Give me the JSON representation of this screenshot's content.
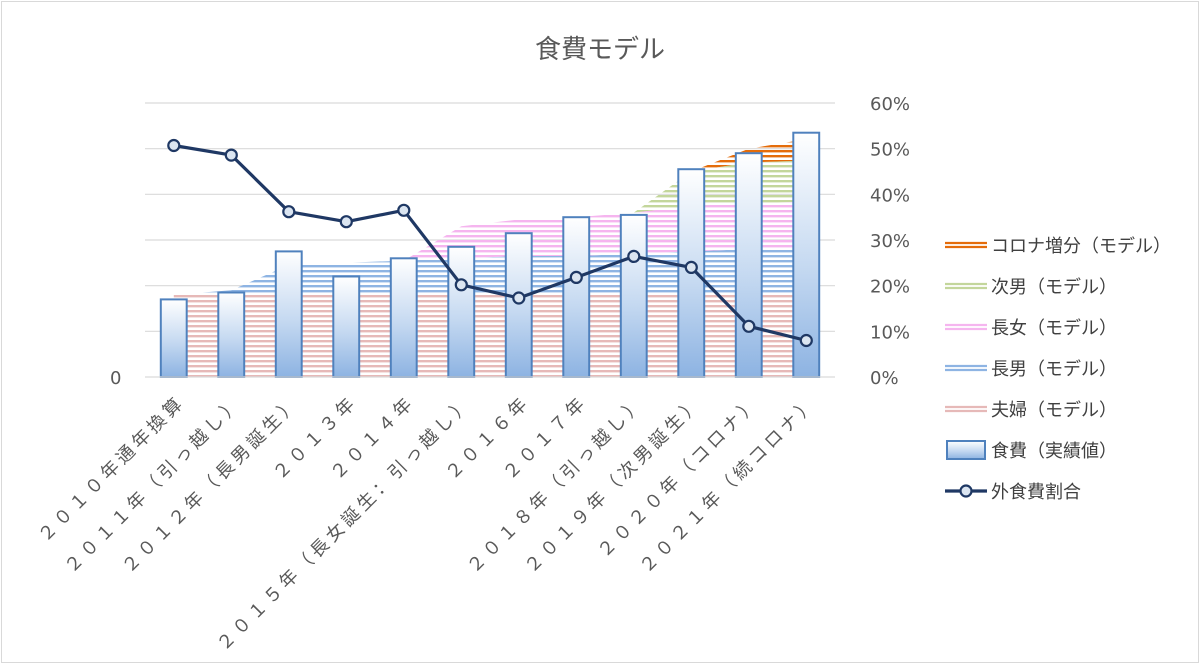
{
  "chart_data": {
    "type": "bar",
    "title": "食費モデル",
    "categories": [
      "２０１０年通年換算",
      "２０１１年（引っ越し）",
      "２０１２年（長男誕生）",
      "２０１３年",
      "２０１４年",
      "２０１５年（長女誕生：引っ越し）",
      "２０１６年",
      "２０１７年",
      "２０１８年（引っ越し）",
      "２０１９年（次男誕生）",
      "２０２０年（コロナ）",
      "２０２１年（続コロナ）"
    ],
    "left_axis": {
      "ticks": [
        "0"
      ],
      "ylim": [
        0,
        60
      ]
    },
    "right_axis": {
      "ticks": [
        "0%",
        "10%",
        "20%",
        "30%",
        "40%",
        "50%",
        "60%"
      ],
      "ylim": [
        0,
        60
      ]
    },
    "grid": true,
    "legend_position": "right",
    "series": [
      {
        "name": "コロナ増分（モデル）",
        "kind": "area-hatched",
        "color": "#e46c0a",
        "values": [
          0,
          0,
          0,
          0,
          0,
          0,
          0,
          0,
          0,
          0,
          3,
          5
        ]
      },
      {
        "name": "次男（モデル）",
        "kind": "area-hatched",
        "color": "#c3d69b",
        "values": [
          0,
          0,
          0,
          0,
          0,
          0,
          0,
          0,
          0,
          7.5,
          9,
          9
        ]
      },
      {
        "name": "長女（モデル）",
        "kind": "area-hatched",
        "color": "#f5b5ef",
        "values": [
          0,
          0,
          0,
          0,
          0,
          7,
          8,
          8.5,
          9,
          10,
          10,
          10
        ]
      },
      {
        "name": "長男（モデル）",
        "kind": "area-hatched",
        "color": "#8eb4e3",
        "values": [
          0,
          1,
          6,
          6.5,
          7,
          7.5,
          8,
          8,
          8.5,
          9,
          9.5,
          10
        ]
      },
      {
        "name": "夫婦（モデル）",
        "kind": "area-hatched",
        "color": "#e6b9b8",
        "values": [
          18,
          18,
          18.5,
          18.5,
          18.5,
          18.5,
          18.5,
          18.5,
          18.5,
          18.5,
          18.5,
          18.5
        ]
      },
      {
        "name": "食費（実績値）",
        "kind": "bar",
        "color": "#4f81bd",
        "values": [
          17,
          18.5,
          27.5,
          22,
          26,
          28.5,
          31.5,
          35,
          35.5,
          45.5,
          49,
          53.5
        ]
      },
      {
        "name": "外食費割合",
        "kind": "line",
        "color": "#1f3864",
        "axis": "right",
        "values": [
          50.7,
          48.6,
          36.2,
          34.0,
          36.5,
          20.2,
          17.3,
          21.8,
          26.4,
          24.0,
          11.1,
          8.0
        ]
      }
    ]
  }
}
